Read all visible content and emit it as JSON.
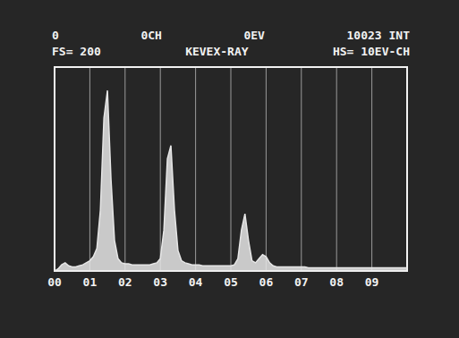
{
  "chart_data": {
    "type": "area",
    "annotations": [
      [
        "0",
        "0CH",
        "0EV",
        "10023 INT"
      ],
      [
        "FS= 200",
        "KEVEX-RAY",
        "HS= 10EV-CH"
      ]
    ],
    "x": [
      0.0,
      0.1,
      0.2,
      0.3,
      0.4,
      0.5,
      0.6,
      0.7,
      0.8,
      0.9,
      1.0,
      1.1,
      1.2,
      1.3,
      1.4,
      1.5,
      1.6,
      1.7,
      1.8,
      1.9,
      2.0,
      2.1,
      2.2,
      2.3,
      2.4,
      2.5,
      2.6,
      2.7,
      2.8,
      2.9,
      3.0,
      3.1,
      3.2,
      3.3,
      3.4,
      3.5,
      3.6,
      3.7,
      3.8,
      3.9,
      4.0,
      4.1,
      4.2,
      4.3,
      4.4,
      4.5,
      4.6,
      4.7,
      4.8,
      4.9,
      5.0,
      5.1,
      5.2,
      5.3,
      5.4,
      5.5,
      5.6,
      5.7,
      5.8,
      5.9,
      6.0,
      6.1,
      6.2,
      6.3,
      6.4,
      6.5,
      6.6,
      6.7,
      6.8,
      6.9,
      7.0,
      7.1,
      7.2,
      7.3,
      7.4,
      7.5,
      7.6,
      7.7,
      7.8,
      7.9,
      8.0,
      8.1,
      8.2,
      8.3,
      8.4,
      8.5,
      8.6,
      8.7,
      8.8,
      8.9,
      9.0,
      9.1,
      9.2,
      9.3,
      9.4,
      9.5,
      9.6,
      9.7,
      9.8,
      9.9,
      10.0
    ],
    "values": [
      0,
      2,
      6,
      8,
      5,
      4,
      4,
      5,
      6,
      8,
      10,
      14,
      22,
      60,
      150,
      177,
      90,
      30,
      12,
      8,
      7,
      7,
      6,
      6,
      6,
      6,
      6,
      6,
      7,
      8,
      12,
      40,
      110,
      123,
      60,
      20,
      10,
      8,
      7,
      6,
      6,
      6,
      5,
      5,
      5,
      5,
      5,
      5,
      5,
      5,
      5,
      6,
      12,
      40,
      56,
      30,
      10,
      8,
      12,
      16,
      14,
      8,
      5,
      4,
      4,
      4,
      4,
      4,
      4,
      4,
      4,
      4,
      3,
      3,
      3,
      3,
      3,
      3,
      3,
      3,
      3,
      3,
      3,
      3,
      3,
      3,
      3,
      3,
      3,
      3,
      3,
      3,
      3,
      3,
      3,
      3,
      3,
      3,
      3,
      3,
      3
    ],
    "color": "#e6e6e6",
    "xlim": [
      0,
      10
    ],
    "xticks": [
      {
        "value": 0,
        "label": "00"
      },
      {
        "value": 1,
        "label": "01"
      },
      {
        "value": 2,
        "label": "02"
      },
      {
        "value": 3,
        "label": "03"
      },
      {
        "value": 4,
        "label": "04"
      },
      {
        "value": 5,
        "label": "05"
      },
      {
        "value": 6,
        "label": "06"
      },
      {
        "value": 7,
        "label": "07"
      },
      {
        "value": 8,
        "label": "08"
      },
      {
        "value": 9,
        "label": "09"
      }
    ],
    "ylim": [
      0,
      200
    ],
    "yticks": [
      0,
      20,
      40,
      60,
      80,
      100,
      120,
      140,
      160,
      180,
      200
    ],
    "grid": true,
    "tick_labels": "x"
  }
}
